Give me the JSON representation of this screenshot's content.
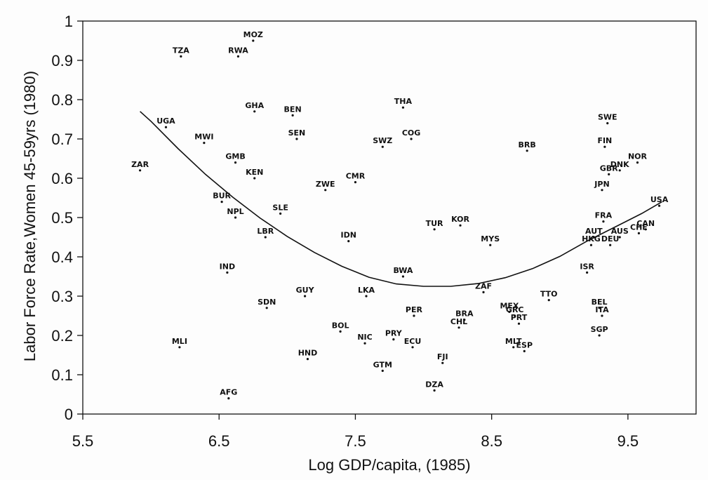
{
  "chart_data": {
    "type": "scatter",
    "xlabel": "Log GDP/capita, (1985)",
    "ylabel": "Labor Force Rate,Women 45-59yrs (1980)",
    "xlim": [
      5.5,
      10.0
    ],
    "ylim": [
      0,
      1
    ],
    "xticks": [
      5.5,
      6.5,
      7.5,
      8.5,
      9.5
    ],
    "xtick_labels": [
      "5.5",
      "6.5",
      "7.5",
      "8.5",
      "9.5"
    ],
    "yticks": [
      0,
      0.1,
      0.2,
      0.3,
      0.4,
      0.5,
      0.6,
      0.7,
      0.8,
      0.9,
      1
    ],
    "ytick_labels": [
      "0",
      "0.1",
      "0.2",
      "0.3",
      "0.4",
      "0.5",
      "0.6",
      "0.7",
      "0.8",
      "0.9",
      "1"
    ],
    "grid": false,
    "points": [
      {
        "label": "MOZ",
        "x": 6.75,
        "y": 0.95
      },
      {
        "label": "TZA",
        "x": 6.22,
        "y": 0.91
      },
      {
        "label": "RWA",
        "x": 6.64,
        "y": 0.91
      },
      {
        "label": "UGA",
        "x": 6.11,
        "y": 0.73
      },
      {
        "label": "MWI",
        "x": 6.39,
        "y": 0.69
      },
      {
        "label": "ZAR",
        "x": 5.92,
        "y": 0.62
      },
      {
        "label": "GHA",
        "x": 6.76,
        "y": 0.77
      },
      {
        "label": "BEN",
        "x": 7.04,
        "y": 0.76
      },
      {
        "label": "SEN",
        "x": 7.07,
        "y": 0.7
      },
      {
        "label": "GMB",
        "x": 6.62,
        "y": 0.64
      },
      {
        "label": "KEN",
        "x": 6.76,
        "y": 0.6
      },
      {
        "label": "ZWE",
        "x": 7.28,
        "y": 0.57
      },
      {
        "label": "CMR",
        "x": 7.5,
        "y": 0.59
      },
      {
        "label": "SWZ",
        "x": 7.7,
        "y": 0.68
      },
      {
        "label": "COG",
        "x": 7.91,
        "y": 0.7
      },
      {
        "label": "THA",
        "x": 7.85,
        "y": 0.78
      },
      {
        "label": "BRB",
        "x": 8.76,
        "y": 0.67
      },
      {
        "label": "SWE",
        "x": 9.35,
        "y": 0.74
      },
      {
        "label": "FIN",
        "x": 9.33,
        "y": 0.68
      },
      {
        "label": "NOR",
        "x": 9.57,
        "y": 0.64
      },
      {
        "label": "DNK",
        "x": 9.44,
        "y": 0.62
      },
      {
        "label": "GBR",
        "x": 9.36,
        "y": 0.61
      },
      {
        "label": "JPN",
        "x": 9.31,
        "y": 0.57
      },
      {
        "label": "USA",
        "x": 9.73,
        "y": 0.53
      },
      {
        "label": "BUR",
        "x": 6.52,
        "y": 0.54
      },
      {
        "label": "NPL",
        "x": 6.62,
        "y": 0.5
      },
      {
        "label": "SLE",
        "x": 6.95,
        "y": 0.51
      },
      {
        "label": "LBR",
        "x": 6.84,
        "y": 0.45
      },
      {
        "label": "IDN",
        "x": 7.45,
        "y": 0.44
      },
      {
        "label": "TUR",
        "x": 8.08,
        "y": 0.47
      },
      {
        "label": "KOR",
        "x": 8.27,
        "y": 0.48
      },
      {
        "label": "MYS",
        "x": 8.49,
        "y": 0.43
      },
      {
        "label": "FRA",
        "x": 9.32,
        "y": 0.49
      },
      {
        "label": "CAN",
        "x": 9.63,
        "y": 0.47
      },
      {
        "label": "AUT",
        "x": 9.25,
        "y": 0.45
      },
      {
        "label": "AUS",
        "x": 9.44,
        "y": 0.45
      },
      {
        "label": "CHE",
        "x": 9.58,
        "y": 0.46
      },
      {
        "label": "HKG",
        "x": 9.23,
        "y": 0.43
      },
      {
        "label": "DEU",
        "x": 9.37,
        "y": 0.43
      },
      {
        "label": "IND",
        "x": 6.56,
        "y": 0.36
      },
      {
        "label": "BWA",
        "x": 7.85,
        "y": 0.35
      },
      {
        "label": "ZAF",
        "x": 8.44,
        "y": 0.31
      },
      {
        "label": "ISR",
        "x": 9.2,
        "y": 0.36
      },
      {
        "label": "SDN",
        "x": 6.85,
        "y": 0.27
      },
      {
        "label": "GUY",
        "x": 7.13,
        "y": 0.3
      },
      {
        "label": "LKA",
        "x": 7.58,
        "y": 0.3
      },
      {
        "label": "PER",
        "x": 7.93,
        "y": 0.25
      },
      {
        "label": "BRA",
        "x": 8.3,
        "y": 0.24
      },
      {
        "label": "CHL",
        "x": 8.26,
        "y": 0.22
      },
      {
        "label": "MEX",
        "x": 8.63,
        "y": 0.26
      },
      {
        "label": "GRC",
        "x": 8.67,
        "y": 0.25
      },
      {
        "label": "PRT",
        "x": 8.7,
        "y": 0.23
      },
      {
        "label": "TTO",
        "x": 8.92,
        "y": 0.29
      },
      {
        "label": "BEL",
        "x": 9.29,
        "y": 0.27
      },
      {
        "label": "ITA",
        "x": 9.31,
        "y": 0.25
      },
      {
        "label": "SGP",
        "x": 9.29,
        "y": 0.2
      },
      {
        "label": "BOL",
        "x": 7.39,
        "y": 0.21
      },
      {
        "label": "NIC",
        "x": 7.57,
        "y": 0.18
      },
      {
        "label": "PRY",
        "x": 7.78,
        "y": 0.19
      },
      {
        "label": "ECU",
        "x": 7.92,
        "y": 0.17
      },
      {
        "label": "MLI",
        "x": 6.21,
        "y": 0.17
      },
      {
        "label": "HND",
        "x": 7.15,
        "y": 0.14
      },
      {
        "label": "FJI",
        "x": 8.14,
        "y": 0.13
      },
      {
        "label": "GTM",
        "x": 7.7,
        "y": 0.11
      },
      {
        "label": "MLT",
        "x": 8.66,
        "y": 0.17
      },
      {
        "label": "ESP",
        "x": 8.74,
        "y": 0.16
      },
      {
        "label": "DZA",
        "x": 8.08,
        "y": 0.06
      },
      {
        "label": "AFG",
        "x": 6.57,
        "y": 0.04
      }
    ],
    "fit_curve": {
      "type": "quadratic",
      "points": [
        [
          5.92,
          0.77
        ],
        [
          6.0,
          0.745
        ],
        [
          6.2,
          0.675
        ],
        [
          6.4,
          0.61
        ],
        [
          6.6,
          0.552
        ],
        [
          6.8,
          0.499
        ],
        [
          7.0,
          0.452
        ],
        [
          7.2,
          0.411
        ],
        [
          7.4,
          0.376
        ],
        [
          7.6,
          0.348
        ],
        [
          7.8,
          0.331
        ],
        [
          8.0,
          0.325
        ],
        [
          8.2,
          0.325
        ],
        [
          8.4,
          0.332
        ],
        [
          8.6,
          0.347
        ],
        [
          8.8,
          0.37
        ],
        [
          9.0,
          0.401
        ],
        [
          9.2,
          0.44
        ],
        [
          9.4,
          0.475
        ],
        [
          9.6,
          0.51
        ],
        [
          9.75,
          0.54
        ]
      ]
    }
  }
}
